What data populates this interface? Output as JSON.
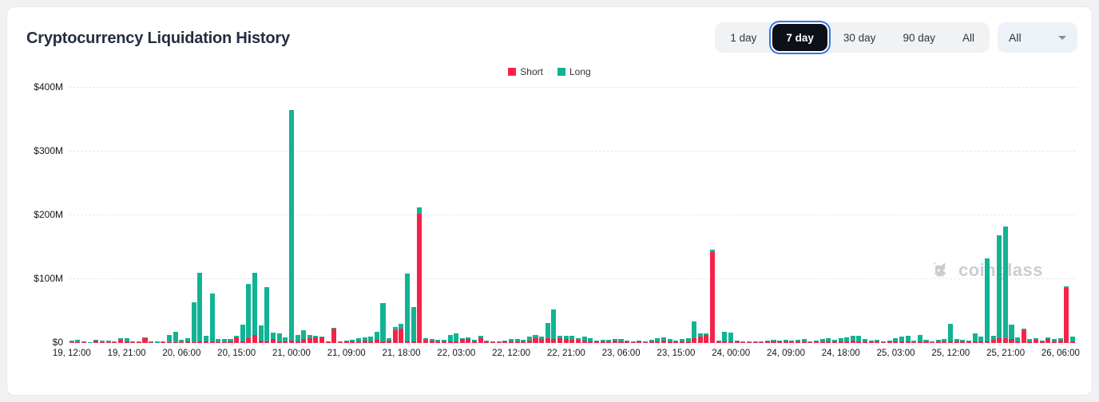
{
  "page": {
    "title": "Cryptocurrency Liquidation History"
  },
  "controls": {
    "range_buttons": [
      {
        "label": "1 day",
        "selected": false
      },
      {
        "label": "7 day",
        "selected": true
      },
      {
        "label": "30 day",
        "selected": false
      },
      {
        "label": "90 day",
        "selected": false
      },
      {
        "label": "All",
        "selected": false
      }
    ],
    "symbol_filter": {
      "value": "All",
      "icon": "caret-down-icon"
    }
  },
  "legend": [
    {
      "label": "Short",
      "color": "#F6224A"
    },
    {
      "label": "Long",
      "color": "#12B394"
    }
  ],
  "watermark": {
    "text": "coinglass",
    "icon": "coinglass-bull-icon",
    "color": "#cbcdd2"
  },
  "chart_data": {
    "type": "bar",
    "stacked": true,
    "unit": "USD millions",
    "title": "Cryptocurrency Liquidation History",
    "ylim": [
      0,
      400
    ],
    "grid": "dashed horizontal lines at each $100M",
    "legend_position": "top-center",
    "y_ticks": [
      {
        "value": 0,
        "label": "$0"
      },
      {
        "value": 100,
        "label": "$100M"
      },
      {
        "value": 200,
        "label": "$200M"
      },
      {
        "value": 300,
        "label": "$300M"
      },
      {
        "value": 400,
        "label": "$400M"
      }
    ],
    "x_tick_interval": 9,
    "x_tick_labels": [
      "19, 12:00",
      "19, 21:00",
      "20, 06:00",
      "20, 15:00",
      "21, 00:00",
      "21, 09:00",
      "21, 18:00",
      "22, 03:00",
      "22, 12:00",
      "22, 21:00",
      "23, 06:00",
      "23, 15:00",
      "24, 00:00",
      "24, 09:00",
      "24, 18:00",
      "25, 03:00",
      "25, 12:00",
      "25, 21:00",
      "26, 06:00"
    ],
    "series": [
      {
        "name": "Short",
        "color": "#F6224A",
        "values": [
          1,
          1,
          1,
          0,
          4,
          1,
          1,
          1,
          5,
          2,
          1,
          1,
          8,
          1,
          0,
          1,
          1,
          1,
          1,
          2,
          1,
          2,
          2,
          2,
          1,
          1,
          2,
          9,
          3,
          8,
          12,
          4,
          3,
          6,
          2,
          2,
          4,
          2,
          6,
          8,
          9,
          9,
          2,
          23,
          1,
          2,
          2,
          3,
          4,
          3,
          5,
          3,
          4,
          20,
          22,
          3,
          3,
          202,
          5,
          4,
          3,
          2,
          2,
          3,
          6,
          6,
          3,
          8,
          2,
          1,
          1,
          2,
          3,
          2,
          2,
          4,
          8,
          6,
          8,
          6,
          7,
          6,
          5,
          5,
          4,
          3,
          2,
          3,
          3,
          4,
          3,
          2,
          1,
          3,
          1,
          2,
          3,
          4,
          3,
          2,
          3,
          2,
          8,
          10,
          12,
          142,
          2,
          3,
          2,
          2,
          1,
          1,
          1,
          1,
          2,
          2,
          2,
          3,
          2,
          2,
          2,
          1,
          2,
          2,
          3,
          2,
          2,
          3,
          4,
          3,
          2,
          2,
          2,
          1,
          2,
          2,
          2,
          2,
          1,
          2,
          2,
          1,
          2,
          2,
          2,
          2,
          2,
          2,
          3,
          2,
          3,
          5,
          8,
          7,
          6,
          3,
          20,
          2,
          5,
          2,
          6,
          3,
          4,
          86,
          2
        ]
      },
      {
        "name": "Long",
        "color": "#12B394",
        "values": [
          3,
          4,
          2,
          1,
          1,
          3,
          3,
          2,
          3,
          5,
          2,
          1,
          1,
          1,
          2,
          2,
          12,
          17,
          4,
          6,
          63,
          108,
          9,
          76,
          5,
          5,
          4,
          2,
          26,
          85,
          98,
          24,
          85,
          10,
          13,
          7,
          361,
          10,
          14,
          4,
          2,
          1,
          1,
          1,
          1,
          2,
          3,
          4,
          5,
          7,
          12,
          59,
          4,
          5,
          8,
          106,
          53,
          11,
          3,
          2,
          2,
          3,
          10,
          12,
          2,
          3,
          2,
          3,
          2,
          2,
          1,
          2,
          3,
          4,
          3,
          6,
          4,
          4,
          23,
          46,
          4,
          5,
          6,
          3,
          6,
          5,
          2,
          2,
          2,
          2,
          3,
          2,
          2,
          1,
          2,
          3,
          4,
          5,
          3,
          2,
          3,
          5,
          26,
          5,
          3,
          4,
          2,
          14,
          14,
          2,
          1,
          1,
          2,
          2,
          2,
          3,
          2,
          2,
          2,
          3,
          4,
          2,
          2,
          4,
          5,
          3,
          5,
          6,
          7,
          8,
          4,
          2,
          3,
          2,
          2,
          5,
          8,
          9,
          3,
          10,
          3,
          2,
          3,
          4,
          28,
          4,
          3,
          2,
          12,
          8,
          130,
          6,
          161,
          176,
          23,
          6,
          2,
          4,
          2,
          2,
          3,
          3,
          4,
          3,
          8
        ]
      }
    ]
  }
}
